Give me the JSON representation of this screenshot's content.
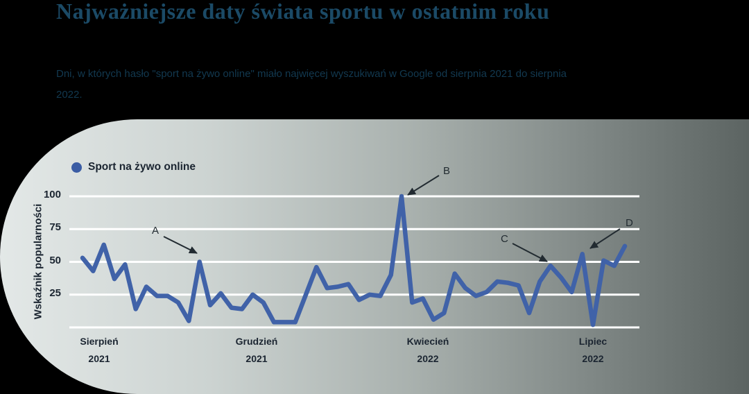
{
  "page": {
    "title": "Najważniejsze daty świata sportu w ostatnim roku",
    "subtitle": "Dni, w których hasło \"sport na żywo online\" miało najwięcej wyszukiwań w Google od sierpnia 2021 do sierpnia 2022."
  },
  "colors": {
    "background": "#000000",
    "title": "#1b4a66",
    "subtitle": "#123950",
    "panel_gradient_start": "#e3e8e7",
    "panel_gradient_end": "#5c6462",
    "gridline": "#ffffff",
    "line": "#4062a8",
    "legend_dot": "#3a5ca4",
    "axis_text": "#1b2531",
    "annotation": "#222b31"
  },
  "chart_data": {
    "type": "line",
    "title": "",
    "legend": [
      {
        "label": "Sport na żywo online"
      }
    ],
    "legend_position": "top-left",
    "xlabel": "",
    "ylabel": "Wskaźnik popularności",
    "ylim": [
      0,
      100
    ],
    "yticks": [
      100,
      75,
      50,
      25
    ],
    "grid": true,
    "x_axis_labels": [
      {
        "month": "Sierpień",
        "year": "2021"
      },
      {
        "month": "Grudzień",
        "year": "2021"
      },
      {
        "month": "Kwiecień",
        "year": "2022"
      },
      {
        "month": "Lipiec",
        "year": "2022"
      }
    ],
    "series": [
      {
        "name": "Sport na żywo online",
        "values": [
          53,
          43,
          63,
          37,
          48,
          14,
          31,
          24,
          24,
          19,
          5,
          50,
          17,
          26,
          15,
          14,
          25,
          19,
          4,
          4,
          4,
          25,
          46,
          30,
          31,
          33,
          21,
          25,
          24,
          40,
          100,
          19,
          22,
          6,
          11,
          41,
          30,
          24,
          27,
          35,
          34,
          32,
          11,
          35,
          47,
          38,
          27,
          56,
          2,
          51,
          47,
          62
        ]
      }
    ],
    "annotations": [
      {
        "label": "A",
        "point_index": 11,
        "value": 50
      },
      {
        "label": "B",
        "point_index": 30,
        "value": 100
      },
      {
        "label": "C",
        "point_index": 44,
        "value": 47
      },
      {
        "label": "D",
        "point_index": 47,
        "value": 56
      }
    ]
  }
}
